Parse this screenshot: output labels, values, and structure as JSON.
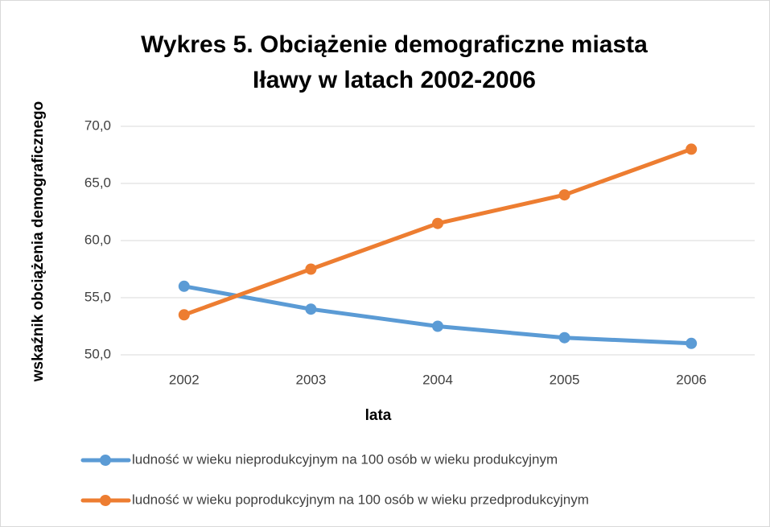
{
  "chart_data": {
    "type": "line",
    "title": [
      "Wykres 5. Obciążenie demograficzne miasta",
      "Iławy w latach 2002-2006"
    ],
    "x_label": "lata",
    "y_label": "wskaźnik obciążenia demograficznego",
    "categories": [
      "2002",
      "2003",
      "2004",
      "2005",
      "2006"
    ],
    "series": [
      {
        "name": "ludność w wieku nieprodukcyjnym na 100 osób w wieku produkcyjnym",
        "color": "#5b9bd5",
        "values": [
          56,
          54,
          52.5,
          51.5,
          51
        ]
      },
      {
        "name": "ludność w wieku poprodukcyjnym na 100 osób w wieku przedprodukcyjnym",
        "color": "#ed7d31",
        "values": [
          53.5,
          57.5,
          61.5,
          64,
          68
        ]
      }
    ],
    "ylim": [
      50,
      70
    ],
    "yticks": [
      {
        "value": 50,
        "label": "50,0"
      },
      {
        "value": 55,
        "label": "55,0"
      },
      {
        "value": 60,
        "label": "60,0"
      },
      {
        "value": 65,
        "label": "65,0"
      },
      {
        "value": 70,
        "label": "70,0"
      }
    ],
    "grid": true,
    "legend": "bottom"
  }
}
